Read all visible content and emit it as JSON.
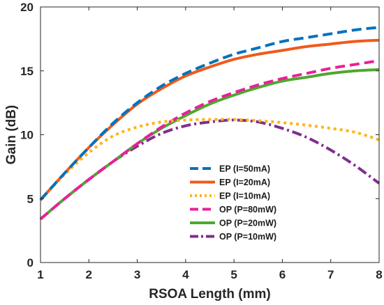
{
  "chart_data": {
    "type": "line",
    "title": "",
    "xlabel": "RSOA Length (mm)",
    "ylabel": "Gain (dB)",
    "xlim": [
      1,
      8
    ],
    "ylim": [
      0,
      20
    ],
    "xticks": [
      1,
      2,
      3,
      4,
      5,
      6,
      7,
      8
    ],
    "yticks": [
      0,
      5,
      10,
      15,
      20
    ],
    "grid": false,
    "legend_position": "lower-center",
    "series": [
      {
        "name": "EP (I=50mA)",
        "color": "#0072BD",
        "dash": "dashed",
        "x": [
          1,
          1.5,
          2,
          2.5,
          3,
          3.5,
          4,
          4.5,
          5,
          5.5,
          6,
          6.5,
          7,
          7.5,
          8
        ],
        "y": [
          4.9,
          7.0,
          9.0,
          10.9,
          12.5,
          13.8,
          14.8,
          15.6,
          16.3,
          16.8,
          17.3,
          17.6,
          17.9,
          18.2,
          18.4
        ]
      },
      {
        "name": "EP (I=20mA)",
        "color": "#F05A1A",
        "dash": "solid",
        "x": [
          1,
          1.5,
          2,
          2.5,
          3,
          3.5,
          4,
          4.5,
          5,
          5.5,
          6,
          6.5,
          7,
          7.5,
          8
        ],
        "y": [
          4.9,
          7.0,
          9.0,
          10.8,
          12.4,
          13.6,
          14.6,
          15.3,
          15.9,
          16.3,
          16.6,
          16.9,
          17.1,
          17.3,
          17.4
        ]
      },
      {
        "name": "EP (I=10mA)",
        "color": "#FFB31A",
        "dash": "dotted",
        "x": [
          1,
          1.5,
          2,
          2.5,
          3,
          3.5,
          4,
          4.5,
          5,
          5.5,
          6,
          6.5,
          7,
          7.5,
          8
        ],
        "y": [
          4.9,
          6.9,
          8.6,
          9.9,
          10.6,
          11.0,
          11.15,
          11.2,
          11.2,
          11.1,
          10.95,
          10.75,
          10.5,
          10.2,
          9.6
        ]
      },
      {
        "name": "OP (P=80mW)",
        "color": "#E8209A",
        "dash": "dashed",
        "x": [
          1,
          1.5,
          2,
          2.5,
          3,
          3.5,
          4,
          4.5,
          5,
          5.5,
          6,
          6.5,
          7,
          7.5,
          8
        ],
        "y": [
          3.4,
          5.0,
          6.5,
          7.9,
          9.3,
          10.6,
          11.7,
          12.6,
          13.3,
          13.9,
          14.4,
          14.8,
          15.2,
          15.5,
          15.8
        ]
      },
      {
        "name": "OP (P=20mW)",
        "color": "#4DA82E",
        "dash": "solid",
        "x": [
          1,
          1.5,
          2,
          2.5,
          3,
          3.5,
          4,
          4.5,
          5,
          5.5,
          6,
          6.5,
          7,
          7.5,
          8
        ],
        "y": [
          3.4,
          5.0,
          6.5,
          7.9,
          9.3,
          10.5,
          11.5,
          12.4,
          13.1,
          13.7,
          14.2,
          14.5,
          14.8,
          15.0,
          15.1
        ]
      },
      {
        "name": "OP (P=10mW)",
        "color": "#7E2F8E",
        "dash": "dashdot",
        "x": [
          1,
          1.5,
          2,
          2.5,
          3,
          3.5,
          4,
          4.5,
          5,
          5.5,
          6,
          6.5,
          7,
          7.5,
          8
        ],
        "y": [
          3.4,
          5.0,
          6.5,
          7.9,
          9.1,
          10.1,
          10.7,
          11.0,
          11.15,
          11.0,
          10.5,
          9.8,
          8.8,
          7.6,
          6.2
        ]
      }
    ]
  }
}
